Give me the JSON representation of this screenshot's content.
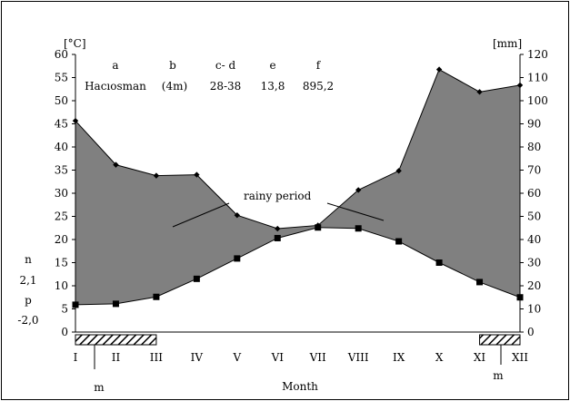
{
  "chart_data": {
    "type": "line",
    "title": "",
    "xlabel": "Month",
    "left_unit": "[°C]",
    "right_unit": "[mm]",
    "categories": [
      "I",
      "II",
      "III",
      "IV",
      "V",
      "VI",
      "VII",
      "VIII",
      "IX",
      "X",
      "XI",
      "XII"
    ],
    "left_ylim": [
      0,
      60
    ],
    "left_ticks": [
      0,
      5,
      10,
      15,
      20,
      25,
      30,
      35,
      40,
      45,
      50,
      55,
      60
    ],
    "right_ylim": [
      0,
      120
    ],
    "right_ticks": [
      0,
      10,
      20,
      30,
      40,
      50,
      60,
      70,
      80,
      90,
      100,
      110,
      120
    ],
    "series": [
      {
        "axis": "left",
        "marker": "square",
        "values": [
          5.9,
          6.1,
          7.6,
          11.5,
          15.9,
          20.3,
          22.6,
          22.4,
          19.6,
          15.0,
          10.8,
          7.5
        ]
      },
      {
        "axis": "right",
        "marker": "diamond",
        "values": [
          91.3,
          72.3,
          67.6,
          68.0,
          50.5,
          44.7,
          46.1,
          61.4,
          69.7,
          113.5,
          103.8,
          106.7
        ]
      }
    ],
    "legend_header": {
      "labels": [
        "a",
        "b",
        "c- d",
        "e",
        "f"
      ],
      "values": [
        "Hacıosman",
        "(4m)",
        "28-38",
        "13,8",
        "895,2"
      ]
    },
    "annotations": {
      "rainy_period": "rainy period",
      "n_label": "n",
      "n_value": "2,1",
      "p_label": "p",
      "p_value": "-2,0",
      "m_label_left": "m",
      "m_label_right": "m"
    },
    "frost_months": [
      "I",
      "II",
      "III",
      "XI",
      "XII"
    ],
    "colors": {
      "fill": "#808080",
      "line": "#000000",
      "hatch": "#000000"
    }
  }
}
